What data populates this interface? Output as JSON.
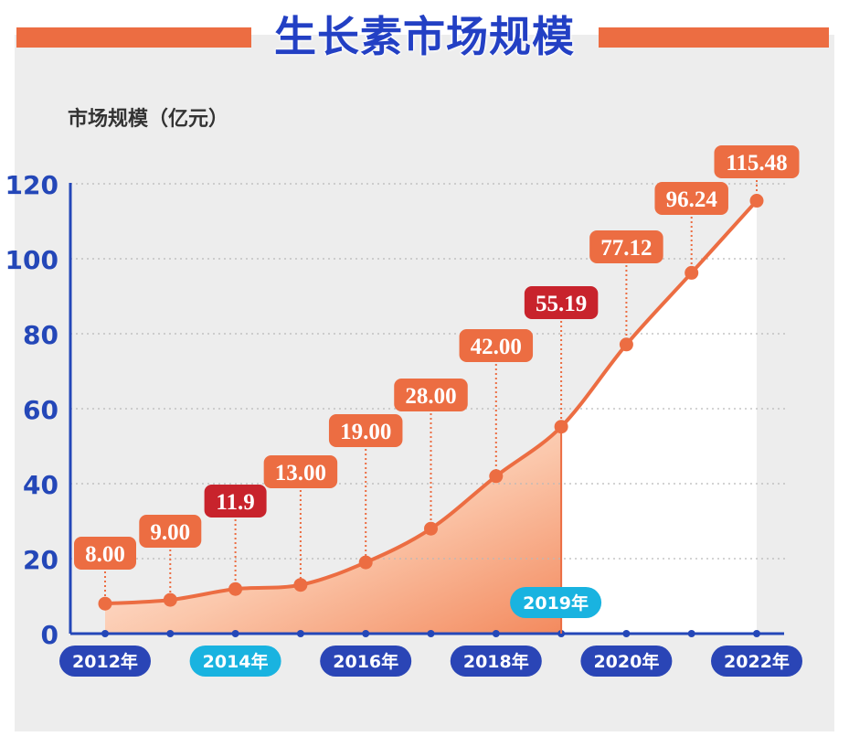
{
  "title": "生长素市场规模",
  "colors": {
    "accent_orange": "#ec6d42",
    "highlight_red": "#c8232c",
    "axis_blue": "#2447b8",
    "pill_navy": "#2a45b6",
    "pill_cyan": "#19b3e0",
    "panel_gray": "#ededed"
  },
  "chart_data": {
    "type": "line",
    "ylabel": "市场规模（亿元）",
    "ylim": [
      0,
      120
    ],
    "yticks": [
      0,
      20,
      40,
      60,
      80,
      100,
      120
    ],
    "grid": true,
    "series": [
      {
        "x": [
          "2012",
          "2013",
          "2014",
          "2015",
          "2016",
          "2017",
          "2018",
          "2019",
          "2020",
          "2021",
          "2022"
        ],
        "values": [
          8.0,
          9.0,
          11.9,
          13.0,
          19.0,
          28.0,
          42.0,
          55.19,
          77.12,
          96.24,
          115.48
        ],
        "labels": [
          "8.00",
          "9.00",
          "11.9",
          "13.00",
          "19.00",
          "28.00",
          "42.00",
          "55.19",
          "77.12",
          "96.24",
          "115.48"
        ],
        "highlight": [
          false,
          false,
          true,
          false,
          false,
          false,
          false,
          true,
          false,
          false,
          false
        ]
      }
    ],
    "year_labels": [
      {
        "index": 0,
        "text": "2012年",
        "style": "navy"
      },
      {
        "index": 2,
        "text": "2014年",
        "style": "cyan"
      },
      {
        "index": 4,
        "text": "2016年",
        "style": "navy"
      },
      {
        "index": 6,
        "text": "2018年",
        "style": "navy"
      },
      {
        "index": 8,
        "text": "2020年",
        "style": "navy"
      },
      {
        "index": 10,
        "text": "2022年",
        "style": "navy"
      }
    ],
    "marker": {
      "index": 7,
      "text": "2019年"
    }
  }
}
